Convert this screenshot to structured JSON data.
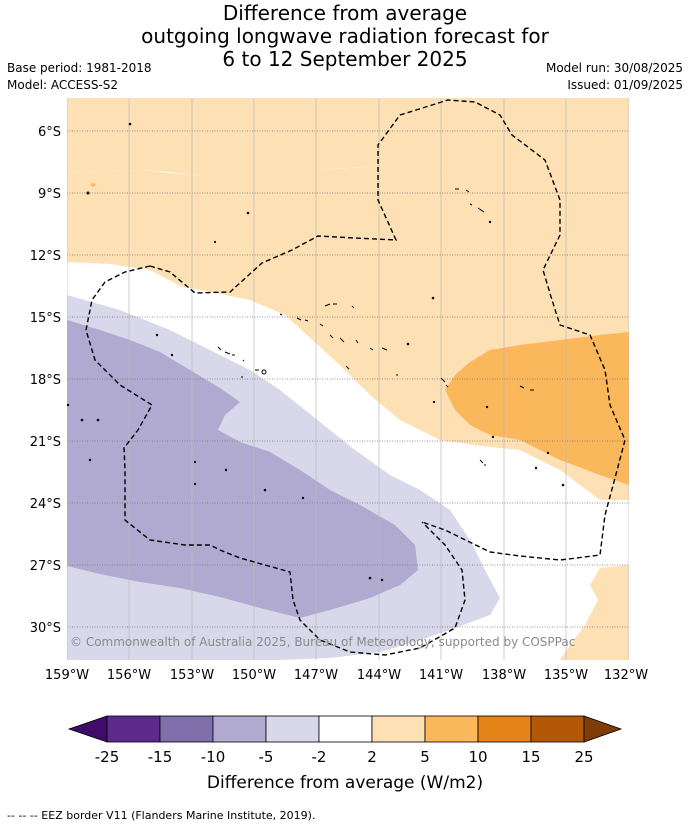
{
  "title_lines": [
    "Difference from average",
    "outgoing longwave radiation forecast for",
    "6 to 12 September 2025"
  ],
  "base_period": "Base period: 1981-2018",
  "model": "Model: ACCESS-S2",
  "model_run": "Model run: 30/08/2025",
  "issued": "Issued: 01/09/2025",
  "lat_labels": [
    "6°S",
    "9°S",
    "12°S",
    "15°S",
    "18°S",
    "21°S",
    "24°S",
    "27°S",
    "30°S"
  ],
  "lon_labels": [
    "159°W",
    "156°W",
    "153°W",
    "150°W",
    "147°W",
    "144°W",
    "141°W",
    "138°W",
    "135°W",
    "132°W"
  ],
  "copyright": "© Commonwealth of Australia 2025, Bureau of Meteorology, supported by COSPPac",
  "colorbar": {
    "labels": [
      "-25",
      "-15",
      "-10",
      "-5",
      "-2",
      "2",
      "5",
      "10",
      "15",
      "25"
    ],
    "colors": [
      "#3f0c68",
      "#5b2a8a",
      "#7f6fab",
      "#b0a9d0",
      "#d8d8ea",
      "#ffffff",
      "#fde0b4",
      "#fbb75c",
      "#e38318",
      "#b35806",
      "#7f3b08"
    ],
    "title": "Difference from average (W/m2)"
  },
  "footer": "--  --  -- EEZ border V11 (Flanders Marine Institute, 2019)."
}
